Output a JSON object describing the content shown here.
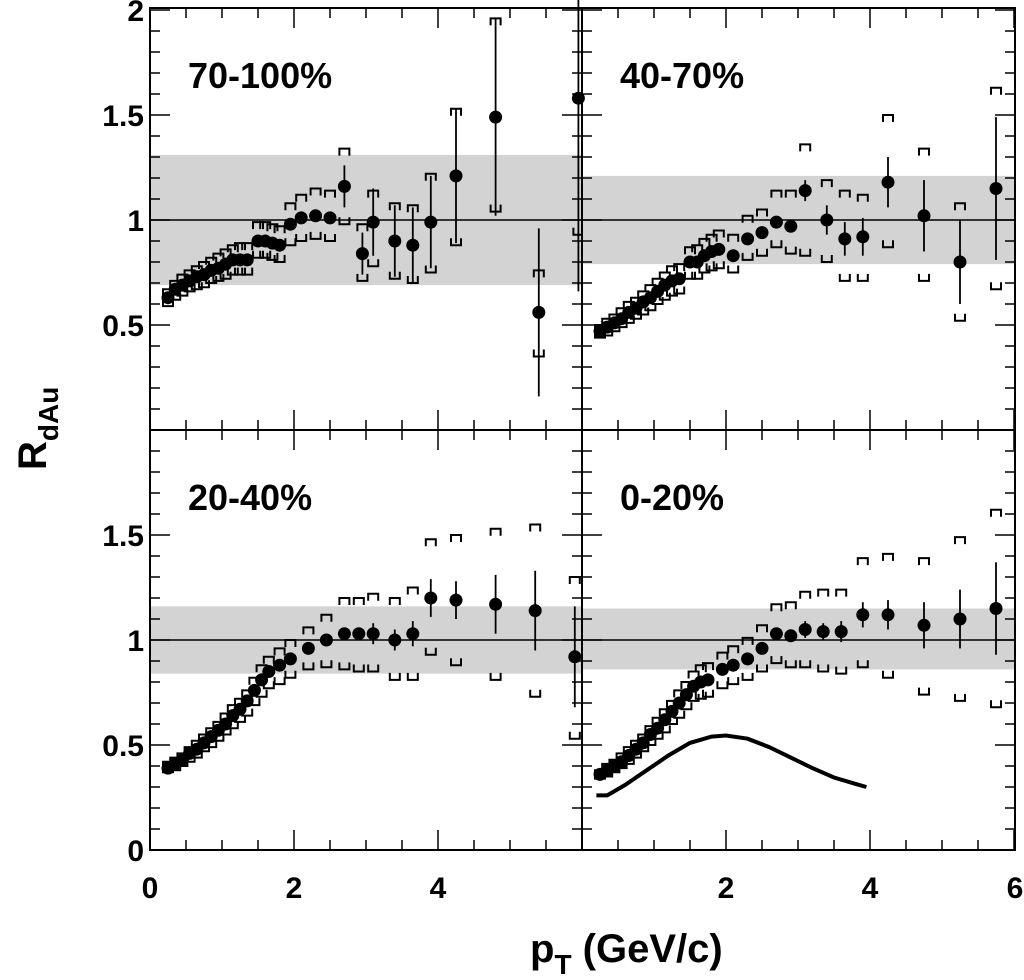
{
  "figure": {
    "xlabel_main": "p",
    "xlabel_sub": "T",
    "xlabel_rest": " (GeV/c)",
    "ylabel_main": "R",
    "ylabel_sub": "dAu"
  },
  "chart_data": [
    {
      "type": "scatter",
      "label": "70-100%",
      "xlim": [
        0,
        6
      ],
      "ylim": [
        0,
        2
      ],
      "xticks": [
        "0",
        "2",
        "4"
      ],
      "yticks": [
        "0.5",
        "1",
        "1.5",
        "2"
      ],
      "band": [
        0.69,
        1.31
      ],
      "reference": 1,
      "points": [
        {
          "x": 0.25,
          "y": 0.63,
          "lo": 0.59,
          "hi": 0.67
        },
        {
          "x": 0.35,
          "y": 0.67,
          "lo": 0.62,
          "hi": 0.71
        },
        {
          "x": 0.45,
          "y": 0.69,
          "lo": 0.64,
          "hi": 0.74
        },
        {
          "x": 0.55,
          "y": 0.71,
          "lo": 0.66,
          "hi": 0.76
        },
        {
          "x": 0.65,
          "y": 0.73,
          "lo": 0.67,
          "hi": 0.78
        },
        {
          "x": 0.75,
          "y": 0.74,
          "lo": 0.68,
          "hi": 0.8
        },
        {
          "x": 0.85,
          "y": 0.76,
          "lo": 0.7,
          "hi": 0.82
        },
        {
          "x": 0.95,
          "y": 0.77,
          "lo": 0.71,
          "hi": 0.84
        },
        {
          "x": 1.05,
          "y": 0.79,
          "lo": 0.72,
          "hi": 0.86
        },
        {
          "x": 1.15,
          "y": 0.81,
          "lo": 0.74,
          "hi": 0.88
        },
        {
          "x": 1.25,
          "y": 0.81,
          "lo": 0.74,
          "hi": 0.89
        },
        {
          "x": 1.35,
          "y": 0.81,
          "lo": 0.74,
          "hi": 0.89
        },
        {
          "x": 1.5,
          "y": 0.9,
          "lo": 0.82,
          "hi": 0.99
        },
        {
          "x": 1.6,
          "y": 0.9,
          "lo": 0.82,
          "hi": 0.99
        },
        {
          "x": 1.7,
          "y": 0.89,
          "lo": 0.81,
          "hi": 0.98
        },
        {
          "x": 1.8,
          "y": 0.88,
          "lo": 0.8,
          "hi": 0.97
        },
        {
          "x": 1.95,
          "y": 0.98,
          "lo": 0.88,
          "hi": 1.08
        },
        {
          "x": 2.1,
          "y": 1.01,
          "lo": 0.9,
          "hi": 1.12
        },
        {
          "x": 2.3,
          "y": 1.02,
          "lo": 0.91,
          "hi": 1.15
        },
        {
          "x": 2.5,
          "y": 1.01,
          "lo": 0.9,
          "hi": 1.14
        },
        {
          "x": 2.7,
          "y": 1.16,
          "e": 0.1,
          "lo": 0.98,
          "hi": 1.34
        },
        {
          "x": 2.95,
          "y": 0.84,
          "e": 0.1,
          "lo": 0.71,
          "hi": 0.98
        },
        {
          "x": 3.1,
          "y": 0.99,
          "e": 0.16,
          "lo": 0.78,
          "hi": 1.14
        },
        {
          "x": 3.4,
          "y": 0.9,
          "e": 0.17,
          "lo": 0.72,
          "hi": 1.08
        },
        {
          "x": 3.65,
          "y": 0.88,
          "e": 0.18,
          "lo": 0.7,
          "hi": 1.07
        },
        {
          "x": 3.9,
          "y": 0.99,
          "e": 0.22,
          "lo": 0.75,
          "hi": 1.22
        },
        {
          "x": 4.25,
          "y": 1.21,
          "e": 0.32,
          "lo": 0.88,
          "hi": 1.53
        },
        {
          "x": 4.8,
          "y": 1.49,
          "e": 0.47,
          "lo": 1.04,
          "hi": 1.96
        },
        {
          "x": 5.4,
          "y": 0.56,
          "e": 0.4,
          "lo": 0.35,
          "hi": 0.76
        },
        {
          "x": 5.95,
          "y": 1.58,
          "e": 0.92,
          "lo": 0.93,
          "hi": 2.22
        }
      ]
    },
    {
      "type": "scatter",
      "label": "40-70%",
      "xlim": [
        0,
        6
      ],
      "ylim": [
        0,
        2
      ],
      "xticks": [],
      "yticks": [],
      "band": [
        0.79,
        1.21
      ],
      "reference": 1,
      "points": [
        {
          "x": 0.25,
          "y": 0.47,
          "lo": 0.44,
          "hi": 0.5
        },
        {
          "x": 0.35,
          "y": 0.49,
          "lo": 0.45,
          "hi": 0.53
        },
        {
          "x": 0.45,
          "y": 0.51,
          "lo": 0.47,
          "hi": 0.55
        },
        {
          "x": 0.55,
          "y": 0.53,
          "lo": 0.49,
          "hi": 0.58
        },
        {
          "x": 0.65,
          "y": 0.56,
          "lo": 0.51,
          "hi": 0.61
        },
        {
          "x": 0.75,
          "y": 0.58,
          "lo": 0.53,
          "hi": 0.63
        },
        {
          "x": 0.85,
          "y": 0.61,
          "lo": 0.55,
          "hi": 0.66
        },
        {
          "x": 0.95,
          "y": 0.63,
          "lo": 0.57,
          "hi": 0.69
        },
        {
          "x": 1.05,
          "y": 0.66,
          "lo": 0.6,
          "hi": 0.72
        },
        {
          "x": 1.15,
          "y": 0.69,
          "lo": 0.62,
          "hi": 0.75
        },
        {
          "x": 1.25,
          "y": 0.71,
          "lo": 0.64,
          "hi": 0.78
        },
        {
          "x": 1.35,
          "y": 0.72,
          "lo": 0.65,
          "hi": 0.79
        },
        {
          "x": 1.5,
          "y": 0.8,
          "lo": 0.72,
          "hi": 0.87
        },
        {
          "x": 1.6,
          "y": 0.8,
          "lo": 0.72,
          "hi": 0.88
        },
        {
          "x": 1.7,
          "y": 0.83,
          "lo": 0.75,
          "hi": 0.91
        },
        {
          "x": 1.8,
          "y": 0.85,
          "lo": 0.76,
          "hi": 0.93
        },
        {
          "x": 1.9,
          "y": 0.86,
          "lo": 0.77,
          "hi": 0.95
        },
        {
          "x": 2.1,
          "y": 0.83,
          "lo": 0.75,
          "hi": 0.93
        },
        {
          "x": 2.3,
          "y": 0.91,
          "lo": 0.81,
          "hi": 1.02
        },
        {
          "x": 2.5,
          "y": 0.94,
          "lo": 0.83,
          "hi": 1.05
        },
        {
          "x": 2.7,
          "y": 0.99,
          "lo": 0.87,
          "hi": 1.14
        },
        {
          "x": 2.9,
          "y": 0.97,
          "lo": 0.84,
          "hi": 1.14
        },
        {
          "x": 3.1,
          "y": 1.14,
          "e": 0.05,
          "lo": 0.83,
          "hi": 1.36
        },
        {
          "x": 3.4,
          "y": 1.0,
          "e": 0.07,
          "lo": 0.8,
          "hi": 1.19
        },
        {
          "x": 3.65,
          "y": 0.91,
          "e": 0.08,
          "lo": 0.71,
          "hi": 1.14
        },
        {
          "x": 3.9,
          "y": 0.92,
          "e": 0.09,
          "lo": 0.71,
          "hi": 1.12
        },
        {
          "x": 4.25,
          "y": 1.18,
          "e": 0.12,
          "lo": 0.87,
          "hi": 1.5
        },
        {
          "x": 4.75,
          "y": 1.02,
          "e": 0.17,
          "lo": 0.71,
          "hi": 1.34
        },
        {
          "x": 5.25,
          "y": 0.8,
          "e": 0.2,
          "lo": 0.52,
          "hi": 1.08
        },
        {
          "x": 5.75,
          "y": 1.15,
          "e": 0.34,
          "lo": 0.67,
          "hi": 1.63
        }
      ]
    },
    {
      "type": "scatter",
      "label": "20-40%",
      "xlim": [
        0,
        6
      ],
      "ylim": [
        0,
        2
      ],
      "xticks": [
        "0",
        "2",
        "4"
      ],
      "yticks": [
        "0",
        "0.5",
        "1",
        "1.5"
      ],
      "band": [
        0.84,
        1.16
      ],
      "reference": 1,
      "points": [
        {
          "x": 0.25,
          "y": 0.39,
          "lo": 0.37,
          "hi": 0.42
        },
        {
          "x": 0.35,
          "y": 0.41,
          "lo": 0.38,
          "hi": 0.44
        },
        {
          "x": 0.45,
          "y": 0.43,
          "lo": 0.4,
          "hi": 0.46
        },
        {
          "x": 0.55,
          "y": 0.46,
          "lo": 0.42,
          "hi": 0.49
        },
        {
          "x": 0.65,
          "y": 0.48,
          "lo": 0.44,
          "hi": 0.52
        },
        {
          "x": 0.75,
          "y": 0.51,
          "lo": 0.47,
          "hi": 0.55
        },
        {
          "x": 0.85,
          "y": 0.54,
          "lo": 0.49,
          "hi": 0.58
        },
        {
          "x": 0.95,
          "y": 0.57,
          "lo": 0.52,
          "hi": 0.61
        },
        {
          "x": 1.05,
          "y": 0.6,
          "lo": 0.55,
          "hi": 0.65
        },
        {
          "x": 1.15,
          "y": 0.64,
          "lo": 0.58,
          "hi": 0.69
        },
        {
          "x": 1.25,
          "y": 0.67,
          "lo": 0.61,
          "hi": 0.72
        },
        {
          "x": 1.35,
          "y": 0.71,
          "lo": 0.64,
          "hi": 0.76
        },
        {
          "x": 1.45,
          "y": 0.76,
          "lo": 0.69,
          "hi": 0.82
        },
        {
          "x": 1.55,
          "y": 0.81,
          "lo": 0.73,
          "hi": 0.88
        },
        {
          "x": 1.65,
          "y": 0.85,
          "lo": 0.77,
          "hi": 0.92
        },
        {
          "x": 1.8,
          "y": 0.88,
          "lo": 0.79,
          "hi": 0.96
        },
        {
          "x": 1.95,
          "y": 0.91,
          "lo": 0.82,
          "hi": 1.0
        },
        {
          "x": 2.2,
          "y": 0.96,
          "lo": 0.86,
          "hi": 1.06
        },
        {
          "x": 2.45,
          "y": 1.0,
          "lo": 0.87,
          "hi": 1.12
        },
        {
          "x": 2.7,
          "y": 1.03,
          "lo": 0.86,
          "hi": 1.2
        },
        {
          "x": 2.9,
          "y": 1.03,
          "lo": 0.85,
          "hi": 1.2
        },
        {
          "x": 3.1,
          "y": 1.03,
          "e": 0.05,
          "lo": 0.85,
          "hi": 1.22
        },
        {
          "x": 3.4,
          "y": 1.0,
          "e": 0.05,
          "lo": 0.81,
          "hi": 1.2
        },
        {
          "x": 3.65,
          "y": 1.03,
          "e": 0.06,
          "lo": 0.81,
          "hi": 1.25
        },
        {
          "x": 3.9,
          "y": 1.2,
          "e": 0.09,
          "lo": 0.93,
          "hi": 1.48
        },
        {
          "x": 4.25,
          "y": 1.19,
          "e": 0.09,
          "lo": 0.88,
          "hi": 1.5
        },
        {
          "x": 4.8,
          "y": 1.17,
          "e": 0.14,
          "lo": 0.81,
          "hi": 1.53
        },
        {
          "x": 5.35,
          "y": 1.14,
          "e": 0.19,
          "lo": 0.73,
          "hi": 1.55
        },
        {
          "x": 5.9,
          "y": 0.92,
          "e": 0.24,
          "lo": 0.53,
          "hi": 1.3
        }
      ]
    },
    {
      "type": "scatter",
      "label": "0-20%",
      "xlim": [
        0,
        6
      ],
      "ylim": [
        0,
        2
      ],
      "xticks": [
        "2",
        "4",
        "6"
      ],
      "yticks": [],
      "band": [
        0.86,
        1.15
      ],
      "reference": 1,
      "points": [
        {
          "x": 0.25,
          "y": 0.36,
          "lo": 0.34,
          "hi": 0.38
        },
        {
          "x": 0.35,
          "y": 0.38,
          "lo": 0.35,
          "hi": 0.41
        },
        {
          "x": 0.45,
          "y": 0.4,
          "lo": 0.37,
          "hi": 0.43
        },
        {
          "x": 0.55,
          "y": 0.42,
          "lo": 0.39,
          "hi": 0.46
        },
        {
          "x": 0.65,
          "y": 0.45,
          "lo": 0.41,
          "hi": 0.49
        },
        {
          "x": 0.75,
          "y": 0.48,
          "lo": 0.44,
          "hi": 0.52
        },
        {
          "x": 0.85,
          "y": 0.51,
          "lo": 0.47,
          "hi": 0.55
        },
        {
          "x": 0.95,
          "y": 0.55,
          "lo": 0.5,
          "hi": 0.59
        },
        {
          "x": 1.05,
          "y": 0.58,
          "lo": 0.53,
          "hi": 0.63
        },
        {
          "x": 1.15,
          "y": 0.62,
          "lo": 0.56,
          "hi": 0.67
        },
        {
          "x": 1.25,
          "y": 0.66,
          "lo": 0.6,
          "hi": 0.71
        },
        {
          "x": 1.35,
          "y": 0.7,
          "lo": 0.63,
          "hi": 0.76
        },
        {
          "x": 1.45,
          "y": 0.74,
          "lo": 0.67,
          "hi": 0.8
        },
        {
          "x": 1.55,
          "y": 0.78,
          "lo": 0.71,
          "hi": 0.85
        },
        {
          "x": 1.65,
          "y": 0.8,
          "lo": 0.72,
          "hi": 0.88
        },
        {
          "x": 1.75,
          "y": 0.81,
          "lo": 0.73,
          "hi": 0.89
        },
        {
          "x": 1.95,
          "y": 0.86,
          "lo": 0.77,
          "hi": 0.94
        },
        {
          "x": 2.1,
          "y": 0.88,
          "lo": 0.79,
          "hi": 0.97
        },
        {
          "x": 2.3,
          "y": 0.91,
          "lo": 0.81,
          "hi": 1.01
        },
        {
          "x": 2.5,
          "y": 0.96,
          "lo": 0.85,
          "hi": 1.07
        },
        {
          "x": 2.7,
          "y": 1.03,
          "lo": 0.89,
          "hi": 1.17
        },
        {
          "x": 2.9,
          "y": 1.02,
          "lo": 0.87,
          "hi": 1.18
        },
        {
          "x": 3.1,
          "y": 1.05,
          "e": 0.04,
          "lo": 0.87,
          "hi": 1.23
        },
        {
          "x": 3.35,
          "y": 1.04,
          "e": 0.04,
          "lo": 0.85,
          "hi": 1.24
        },
        {
          "x": 3.6,
          "y": 1.04,
          "e": 0.05,
          "lo": 0.84,
          "hi": 1.24
        },
        {
          "x": 3.9,
          "y": 1.12,
          "e": 0.06,
          "lo": 0.87,
          "hi": 1.39
        },
        {
          "x": 4.25,
          "y": 1.12,
          "e": 0.07,
          "lo": 0.82,
          "hi": 1.41
        },
        {
          "x": 4.75,
          "y": 1.07,
          "e": 0.11,
          "lo": 0.74,
          "hi": 1.39
        },
        {
          "x": 5.25,
          "y": 1.1,
          "e": 0.14,
          "lo": 0.71,
          "hi": 1.49
        },
        {
          "x": 5.75,
          "y": 1.15,
          "e": 0.22,
          "lo": 0.68,
          "hi": 1.62
        }
      ],
      "curve": [
        {
          "x": 0.2,
          "y": 0.26
        },
        {
          "x": 0.35,
          "y": 0.26
        },
        {
          "x": 0.6,
          "y": 0.31
        },
        {
          "x": 0.9,
          "y": 0.38
        },
        {
          "x": 1.2,
          "y": 0.45
        },
        {
          "x": 1.5,
          "y": 0.51
        },
        {
          "x": 1.8,
          "y": 0.54
        },
        {
          "x": 2.0,
          "y": 0.545
        },
        {
          "x": 2.3,
          "y": 0.53
        },
        {
          "x": 2.6,
          "y": 0.49
        },
        {
          "x": 2.9,
          "y": 0.44
        },
        {
          "x": 3.2,
          "y": 0.39
        },
        {
          "x": 3.5,
          "y": 0.345
        },
        {
          "x": 3.8,
          "y": 0.315
        },
        {
          "x": 3.95,
          "y": 0.3
        }
      ]
    }
  ]
}
